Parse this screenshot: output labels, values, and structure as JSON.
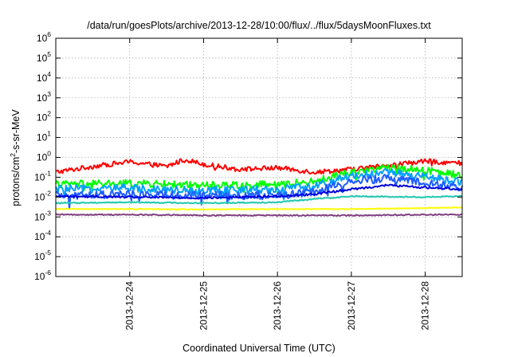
{
  "chart_data": {
    "type": "line",
    "title": "/data/run/goesPlots/archive/2013-12-28/10:00/flux/../flux/5daysMoonFluxes.txt",
    "xlabel": "Coordinated Universal Time (UTC)",
    "ylabel": "protons/cm2-s-sr-MeV",
    "y_scale": "log",
    "ylim": [
      1e-06,
      1000000.0
    ],
    "xlim": [
      "2013-12-23T00:00",
      "2013-12-28T12:00"
    ],
    "grid": true,
    "legend": "none",
    "x_ticks": [
      "2013-12-24",
      "2013-12-25",
      "2013-12-26",
      "2013-12-27",
      "2013-12-28"
    ],
    "y_ticks": [
      {
        "base": "10",
        "exp": "-6"
      },
      {
        "base": "10",
        "exp": "-5"
      },
      {
        "base": "10",
        "exp": "-4"
      },
      {
        "base": "10",
        "exp": "-3"
      },
      {
        "base": "10",
        "exp": "-2"
      },
      {
        "base": "10",
        "exp": "-1"
      },
      {
        "base": "10",
        "exp": "0"
      },
      {
        "base": "10",
        "exp": "1"
      },
      {
        "base": "10",
        "exp": "2"
      },
      {
        "base": "10",
        "exp": "3"
      },
      {
        "base": "10",
        "exp": "4"
      },
      {
        "base": "10",
        "exp": "5"
      },
      {
        "base": "10",
        "exp": "6"
      }
    ],
    "series": [
      {
        "color": "#ff0000",
        "noise": 0.12,
        "x": [
          "2013-12-23T00:00",
          "2013-12-23T12:00",
          "2013-12-24T00:00",
          "2013-12-24T12:00",
          "2013-12-24T18:00",
          "2013-12-25T00:00",
          "2013-12-25T12:00",
          "2013-12-26T00:00",
          "2013-12-26T12:00",
          "2013-12-27T00:00",
          "2013-12-27T12:00",
          "2013-12-28T00:00",
          "2013-12-28T12:00"
        ],
        "y": [
          0.18,
          0.35,
          0.6,
          0.35,
          0.8,
          0.45,
          0.25,
          0.3,
          0.18,
          0.25,
          0.4,
          0.65,
          0.5
        ]
      },
      {
        "color": "#00ff00",
        "noise": 0.18,
        "x": [
          "2013-12-23T00:00",
          "2013-12-24T00:00",
          "2013-12-25T00:00",
          "2013-12-26T00:00",
          "2013-12-26T12:00",
          "2013-12-27T00:00",
          "2013-12-27T12:00",
          "2013-12-28T00:00",
          "2013-12-28T12:00"
        ],
        "y": [
          0.045,
          0.05,
          0.04,
          0.045,
          0.06,
          0.2,
          0.3,
          0.25,
          0.12
        ]
      },
      {
        "color": "#00a0ff",
        "noise": 0.2,
        "x": [
          "2013-12-23T00:00",
          "2013-12-24T00:00",
          "2013-12-25T00:00",
          "2013-12-26T00:00",
          "2013-12-26T12:00",
          "2013-12-27T00:00",
          "2013-12-27T12:00",
          "2013-12-28T00:00",
          "2013-12-28T12:00"
        ],
        "y": [
          0.025,
          0.028,
          0.022,
          0.025,
          0.035,
          0.12,
          0.18,
          0.1,
          0.06
        ]
      },
      {
        "color": "#1e5cff",
        "noise": 0.2,
        "x": [
          "2013-12-23T00:00",
          "2013-12-24T00:00",
          "2013-12-25T00:00",
          "2013-12-26T00:00",
          "2013-12-26T12:00",
          "2013-12-27T00:00",
          "2013-12-27T12:00",
          "2013-12-28T00:00",
          "2013-12-28T12:00"
        ],
        "y": [
          0.012,
          0.014,
          0.012,
          0.012,
          0.018,
          0.07,
          0.09,
          0.05,
          0.03
        ]
      },
      {
        "color": "#0000dd",
        "noise": 0.05,
        "x": [
          "2013-12-23T00:00",
          "2013-12-24T00:00",
          "2013-12-25T00:00",
          "2013-12-26T00:00",
          "2013-12-26T12:00",
          "2013-12-27T00:00",
          "2013-12-27T12:00",
          "2013-12-28T00:00",
          "2013-12-28T12:00"
        ],
        "y": [
          0.011,
          0.01,
          0.009,
          0.011,
          0.014,
          0.025,
          0.04,
          0.03,
          0.025
        ]
      },
      {
        "color": "#20c8b0",
        "noise": 0.03,
        "x": [
          "2013-12-23T00:00",
          "2013-12-24T00:00",
          "2013-12-25T00:00",
          "2013-12-26T00:00",
          "2013-12-26T12:00",
          "2013-12-27T00:00",
          "2013-12-28T00:00",
          "2013-12-28T12:00"
        ],
        "y": [
          0.005,
          0.0055,
          0.005,
          0.0055,
          0.008,
          0.011,
          0.01,
          0.011
        ]
      },
      {
        "color": "#ffff00",
        "noise": 0.015,
        "x": [
          "2013-12-23T00:00",
          "2013-12-24T00:00",
          "2013-12-25T00:00",
          "2013-12-26T00:00",
          "2013-12-27T00:00",
          "2013-12-28T00:00",
          "2013-12-28T12:00"
        ],
        "y": [
          0.0025,
          0.0025,
          0.0024,
          0.0025,
          0.0025,
          0.0028,
          0.003
        ]
      },
      {
        "color": "#804080",
        "noise": 0.03,
        "x": [
          "2013-12-23T00:00",
          "2013-12-24T00:00",
          "2013-12-25T00:00",
          "2013-12-26T00:00",
          "2013-12-27T00:00",
          "2013-12-28T00:00",
          "2013-12-28T12:00"
        ],
        "y": [
          0.0013,
          0.0013,
          0.0012,
          0.0012,
          0.0012,
          0.0013,
          0.0013
        ]
      }
    ]
  }
}
